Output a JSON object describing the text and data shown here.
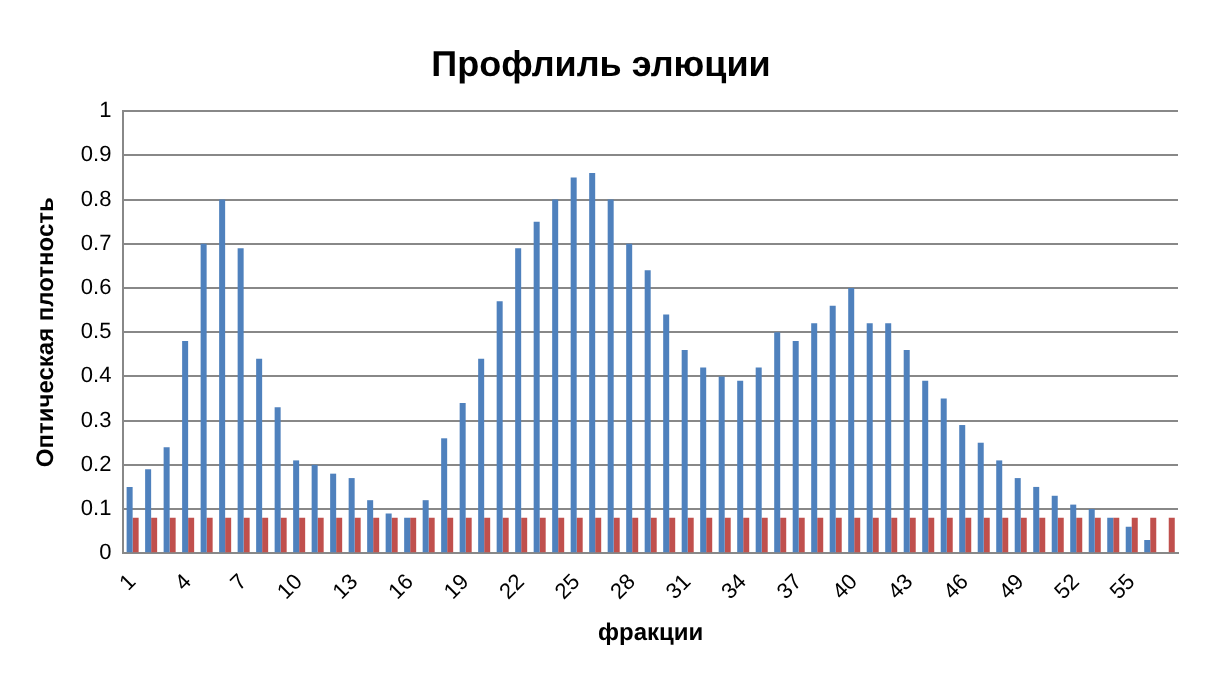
{
  "chart_data": {
    "type": "bar",
    "title": "Профлиль элюции",
    "xlabel": "фракции",
    "ylabel": "Оптическая плотность",
    "categories": [
      "1",
      null,
      null,
      "4",
      null,
      null,
      "7",
      null,
      null,
      "10",
      null,
      null,
      "13",
      null,
      null,
      "16",
      null,
      null,
      "19",
      null,
      null,
      "22",
      null,
      null,
      "25",
      null,
      null,
      "28",
      null,
      null,
      "31",
      null,
      null,
      "34",
      null,
      null,
      "37",
      null,
      null,
      "40",
      null,
      null,
      "43",
      null,
      null,
      "46",
      null,
      null,
      "49",
      null,
      null,
      "52",
      null,
      null,
      "55",
      null,
      null
    ],
    "series": [
      {
        "color": "#4f81bd",
        "values": [
          0.15,
          0.19,
          0.24,
          0.48,
          0.7,
          0.8,
          0.69,
          0.44,
          0.33,
          0.21,
          0.2,
          0.18,
          0.17,
          0.12,
          0.09,
          0.08,
          0.12,
          0.26,
          0.34,
          0.44,
          0.57,
          0.69,
          0.75,
          0.8,
          0.85,
          0.86,
          0.8,
          0.7,
          0.64,
          0.54,
          0.46,
          0.42,
          0.4,
          0.39,
          0.42,
          0.5,
          0.48,
          0.52,
          0.56,
          0.6,
          0.52,
          0.52,
          0.46,
          0.39,
          0.35,
          0.29,
          0.25,
          0.21,
          0.17,
          0.15,
          0.13,
          0.11,
          0.1,
          0.08,
          0.06,
          0.03,
          null
        ]
      },
      {
        "color": "#c0504d",
        "values": [
          0.08,
          0.08,
          0.08,
          0.08,
          0.08,
          0.08,
          0.08,
          0.08,
          0.08,
          0.08,
          0.08,
          0.08,
          0.08,
          0.08,
          0.08,
          0.08,
          0.08,
          0.08,
          0.08,
          0.08,
          0.08,
          0.08,
          0.08,
          0.08,
          0.08,
          0.08,
          0.08,
          0.08,
          0.08,
          0.08,
          0.08,
          0.08,
          0.08,
          0.08,
          0.08,
          0.08,
          0.08,
          0.08,
          0.08,
          0.08,
          0.08,
          0.08,
          0.08,
          0.08,
          0.08,
          0.08,
          0.08,
          0.08,
          0.08,
          0.08,
          0.08,
          0.08,
          0.08,
          0.08,
          0.08,
          0.08,
          0.08
        ]
      }
    ],
    "ylim": [
      0,
      1
    ],
    "yticks": [
      0,
      0.1,
      0.2,
      0.3,
      0.4,
      0.5,
      0.6,
      0.7,
      0.8,
      0.9,
      1
    ],
    "grid": "y",
    "legend": false
  }
}
